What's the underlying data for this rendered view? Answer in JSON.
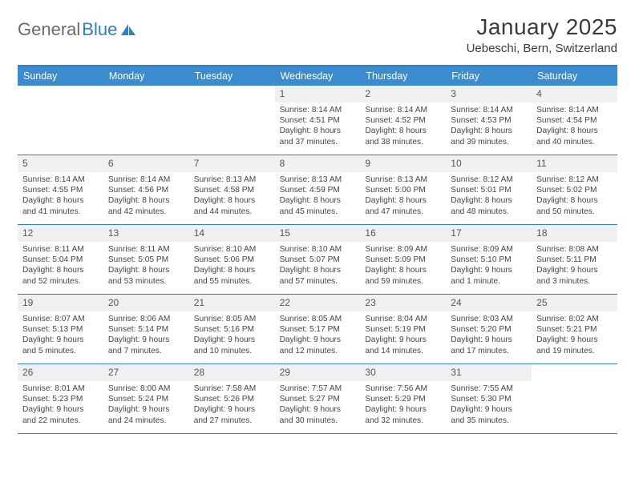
{
  "logo": {
    "word1": "General",
    "word2": "Blue"
  },
  "title": "January 2025",
  "location": "Uebeschi, Bern, Switzerland",
  "colors": {
    "brand_blue": "#2f7ec2",
    "header_blue": "#3a8bcf",
    "daynum_bg": "#eef0f2",
    "text": "#444444",
    "logo_gray": "#6a6a6a"
  },
  "day_headers": [
    "Sunday",
    "Monday",
    "Tuesday",
    "Wednesday",
    "Thursday",
    "Friday",
    "Saturday"
  ],
  "weeks": [
    [
      null,
      null,
      null,
      {
        "n": "1",
        "sr": "8:14 AM",
        "ss": "4:51 PM",
        "dl": "8 hours and 37 minutes."
      },
      {
        "n": "2",
        "sr": "8:14 AM",
        "ss": "4:52 PM",
        "dl": "8 hours and 38 minutes."
      },
      {
        "n": "3",
        "sr": "8:14 AM",
        "ss": "4:53 PM",
        "dl": "8 hours and 39 minutes."
      },
      {
        "n": "4",
        "sr": "8:14 AM",
        "ss": "4:54 PM",
        "dl": "8 hours and 40 minutes."
      }
    ],
    [
      {
        "n": "5",
        "sr": "8:14 AM",
        "ss": "4:55 PM",
        "dl": "8 hours and 41 minutes."
      },
      {
        "n": "6",
        "sr": "8:14 AM",
        "ss": "4:56 PM",
        "dl": "8 hours and 42 minutes."
      },
      {
        "n": "7",
        "sr": "8:13 AM",
        "ss": "4:58 PM",
        "dl": "8 hours and 44 minutes."
      },
      {
        "n": "8",
        "sr": "8:13 AM",
        "ss": "4:59 PM",
        "dl": "8 hours and 45 minutes."
      },
      {
        "n": "9",
        "sr": "8:13 AM",
        "ss": "5:00 PM",
        "dl": "8 hours and 47 minutes."
      },
      {
        "n": "10",
        "sr": "8:12 AM",
        "ss": "5:01 PM",
        "dl": "8 hours and 48 minutes."
      },
      {
        "n": "11",
        "sr": "8:12 AM",
        "ss": "5:02 PM",
        "dl": "8 hours and 50 minutes."
      }
    ],
    [
      {
        "n": "12",
        "sr": "8:11 AM",
        "ss": "5:04 PM",
        "dl": "8 hours and 52 minutes."
      },
      {
        "n": "13",
        "sr": "8:11 AM",
        "ss": "5:05 PM",
        "dl": "8 hours and 53 minutes."
      },
      {
        "n": "14",
        "sr": "8:10 AM",
        "ss": "5:06 PM",
        "dl": "8 hours and 55 minutes."
      },
      {
        "n": "15",
        "sr": "8:10 AM",
        "ss": "5:07 PM",
        "dl": "8 hours and 57 minutes."
      },
      {
        "n": "16",
        "sr": "8:09 AM",
        "ss": "5:09 PM",
        "dl": "8 hours and 59 minutes."
      },
      {
        "n": "17",
        "sr": "8:09 AM",
        "ss": "5:10 PM",
        "dl": "9 hours and 1 minute."
      },
      {
        "n": "18",
        "sr": "8:08 AM",
        "ss": "5:11 PM",
        "dl": "9 hours and 3 minutes."
      }
    ],
    [
      {
        "n": "19",
        "sr": "8:07 AM",
        "ss": "5:13 PM",
        "dl": "9 hours and 5 minutes."
      },
      {
        "n": "20",
        "sr": "8:06 AM",
        "ss": "5:14 PM",
        "dl": "9 hours and 7 minutes."
      },
      {
        "n": "21",
        "sr": "8:05 AM",
        "ss": "5:16 PM",
        "dl": "9 hours and 10 minutes."
      },
      {
        "n": "22",
        "sr": "8:05 AM",
        "ss": "5:17 PM",
        "dl": "9 hours and 12 minutes."
      },
      {
        "n": "23",
        "sr": "8:04 AM",
        "ss": "5:19 PM",
        "dl": "9 hours and 14 minutes."
      },
      {
        "n": "24",
        "sr": "8:03 AM",
        "ss": "5:20 PM",
        "dl": "9 hours and 17 minutes."
      },
      {
        "n": "25",
        "sr": "8:02 AM",
        "ss": "5:21 PM",
        "dl": "9 hours and 19 minutes."
      }
    ],
    [
      {
        "n": "26",
        "sr": "8:01 AM",
        "ss": "5:23 PM",
        "dl": "9 hours and 22 minutes."
      },
      {
        "n": "27",
        "sr": "8:00 AM",
        "ss": "5:24 PM",
        "dl": "9 hours and 24 minutes."
      },
      {
        "n": "28",
        "sr": "7:58 AM",
        "ss": "5:26 PM",
        "dl": "9 hours and 27 minutes."
      },
      {
        "n": "29",
        "sr": "7:57 AM",
        "ss": "5:27 PM",
        "dl": "9 hours and 30 minutes."
      },
      {
        "n": "30",
        "sr": "7:56 AM",
        "ss": "5:29 PM",
        "dl": "9 hours and 32 minutes."
      },
      {
        "n": "31",
        "sr": "7:55 AM",
        "ss": "5:30 PM",
        "dl": "9 hours and 35 minutes."
      },
      null
    ]
  ],
  "labels": {
    "sunrise": "Sunrise:",
    "sunset": "Sunset:",
    "daylight": "Daylight:"
  }
}
